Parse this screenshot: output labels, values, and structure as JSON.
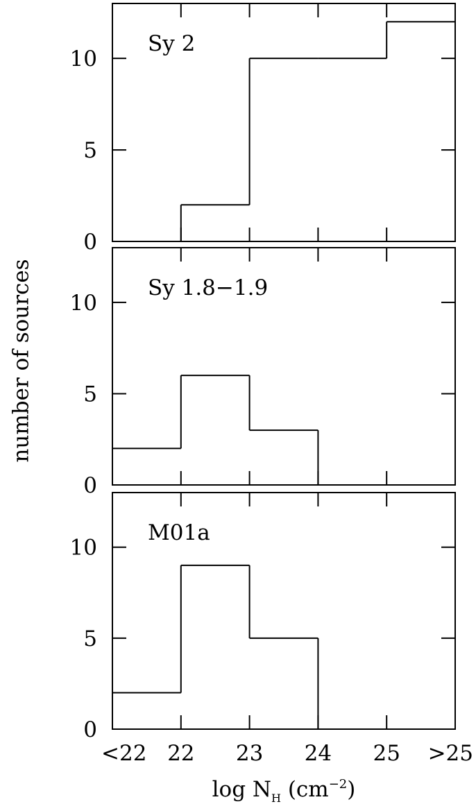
{
  "chart_data": [
    {
      "type": "histogram",
      "label": "Sy 2",
      "bins": [
        21,
        22,
        23,
        24,
        25,
        26
      ],
      "values": [
        0,
        2,
        10,
        10,
        12
      ],
      "color": "#000000",
      "ylim": [
        0,
        13
      ],
      "yticks": [
        0,
        5,
        10
      ],
      "xlim": [
        21,
        26
      ]
    },
    {
      "type": "histogram",
      "label": "Sy 1.8−1.9",
      "bins": [
        21,
        22,
        23,
        24,
        25,
        26
      ],
      "values": [
        2,
        6,
        3,
        0,
        0
      ],
      "color": "#000000",
      "ylim": [
        0,
        13
      ],
      "yticks": [
        0,
        5,
        10
      ],
      "xlim": [
        21,
        26
      ]
    },
    {
      "type": "histogram",
      "label": "M01a",
      "bins": [
        21,
        22,
        23,
        24,
        25,
        26
      ],
      "values": [
        2,
        9,
        5,
        0,
        0
      ],
      "color": "#000000",
      "ylim": [
        0,
        13
      ],
      "yticks": [
        0,
        5,
        10
      ],
      "xlim": [
        21,
        26
      ],
      "xticks": [
        {
          "value": 21,
          "label": "<22"
        },
        22,
        23,
        24,
        25,
        {
          "value": 26,
          "label": ">25"
        }
      ]
    }
  ],
  "ylabel": "number of sources",
  "xlabel_parts": [
    "log N",
    "H",
    " (cm",
    "−2",
    ")"
  ]
}
